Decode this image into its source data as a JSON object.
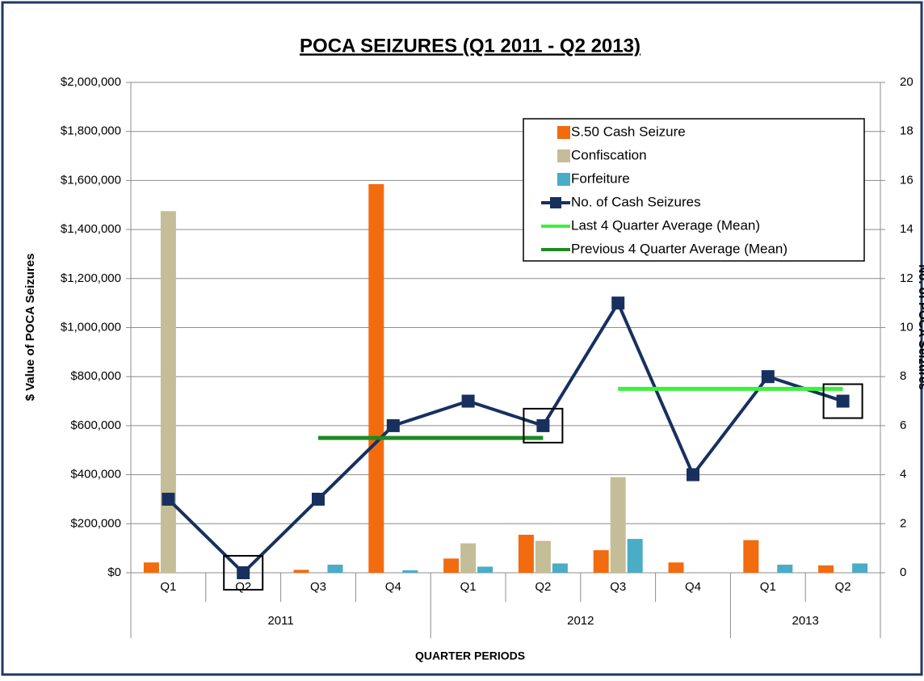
{
  "chart_data": {
    "type": "bar",
    "title": "POCA SEIZURES (Q1 2011 - Q2 2013)",
    "x_label": "QUARTER PERIODS",
    "y_label": "$ Value of POCA Seizures",
    "y2_label": "No. of POCA Seizures",
    "groups": [
      {
        "name": "2011",
        "categories": [
          "Q1",
          "Q2",
          "Q3",
          "Q4"
        ]
      },
      {
        "name": "2012",
        "categories": [
          "Q1",
          "Q2",
          "Q3",
          "Q4"
        ]
      },
      {
        "name": "2013",
        "categories": [
          "Q1",
          "Q2"
        ]
      }
    ],
    "series": [
      {
        "name": "S.50 Cash Seizure",
        "type": "bar",
        "color": "#f26b0f",
        "values": [
          42000,
          0,
          12000,
          1585000,
          58000,
          155000,
          92000,
          42000,
          133000,
          30000
        ]
      },
      {
        "name": "Confiscation",
        "type": "bar",
        "color": "#c4bd97",
        "values": [
          1475000,
          0,
          0,
          0,
          120000,
          130000,
          390000,
          0,
          0,
          0
        ]
      },
      {
        "name": "Forfeiture",
        "type": "bar",
        "color": "#4bacc6",
        "values": [
          0,
          0,
          33000,
          10000,
          25000,
          38000,
          138000,
          0,
          33000,
          38000
        ]
      },
      {
        "name": "No. of Cash Seizures",
        "type": "line",
        "marker": "square",
        "axis": "y2",
        "color": "#17305e",
        "values": [
          3,
          0,
          3,
          6,
          7,
          6,
          11,
          4,
          8,
          7
        ]
      },
      {
        "name": "Last 4 Quarter Average (Mean)",
        "type": "line",
        "axis": "y2",
        "color": "#3ef03e",
        "values": [
          null,
          null,
          null,
          null,
          null,
          null,
          7.5,
          7.5,
          7.5,
          7.5
        ]
      },
      {
        "name": "Previous 4 Quarter Average (Mean)",
        "type": "line",
        "axis": "y2",
        "color": "#1e8a22",
        "values": [
          null,
          null,
          5.5,
          5.5,
          5.5,
          5.5,
          null,
          null,
          null,
          null
        ]
      }
    ],
    "ylim": [
      0,
      2000000
    ],
    "yticks": [
      {
        "value": 0,
        "label": "$0"
      },
      {
        "value": 200000,
        "label": "$200,000"
      },
      {
        "value": 400000,
        "label": "$400,000"
      },
      {
        "value": 600000,
        "label": "$600,000"
      },
      {
        "value": 800000,
        "label": "$800,000"
      },
      {
        "value": 1000000,
        "label": "$1,000,000"
      },
      {
        "value": 1200000,
        "label": "$1,200,000"
      },
      {
        "value": 1400000,
        "label": "$1,400,000"
      },
      {
        "value": 1600000,
        "label": "$1,600,000"
      },
      {
        "value": 1800000,
        "label": "$1,800,000"
      },
      {
        "value": 2000000,
        "label": "$2,000,000"
      }
    ],
    "y2lim": [
      0,
      20
    ],
    "y2ticks": [
      0,
      2,
      4,
      6,
      8,
      10,
      12,
      14,
      16,
      18,
      20
    ],
    "grid": true,
    "legend": "top-right"
  }
}
